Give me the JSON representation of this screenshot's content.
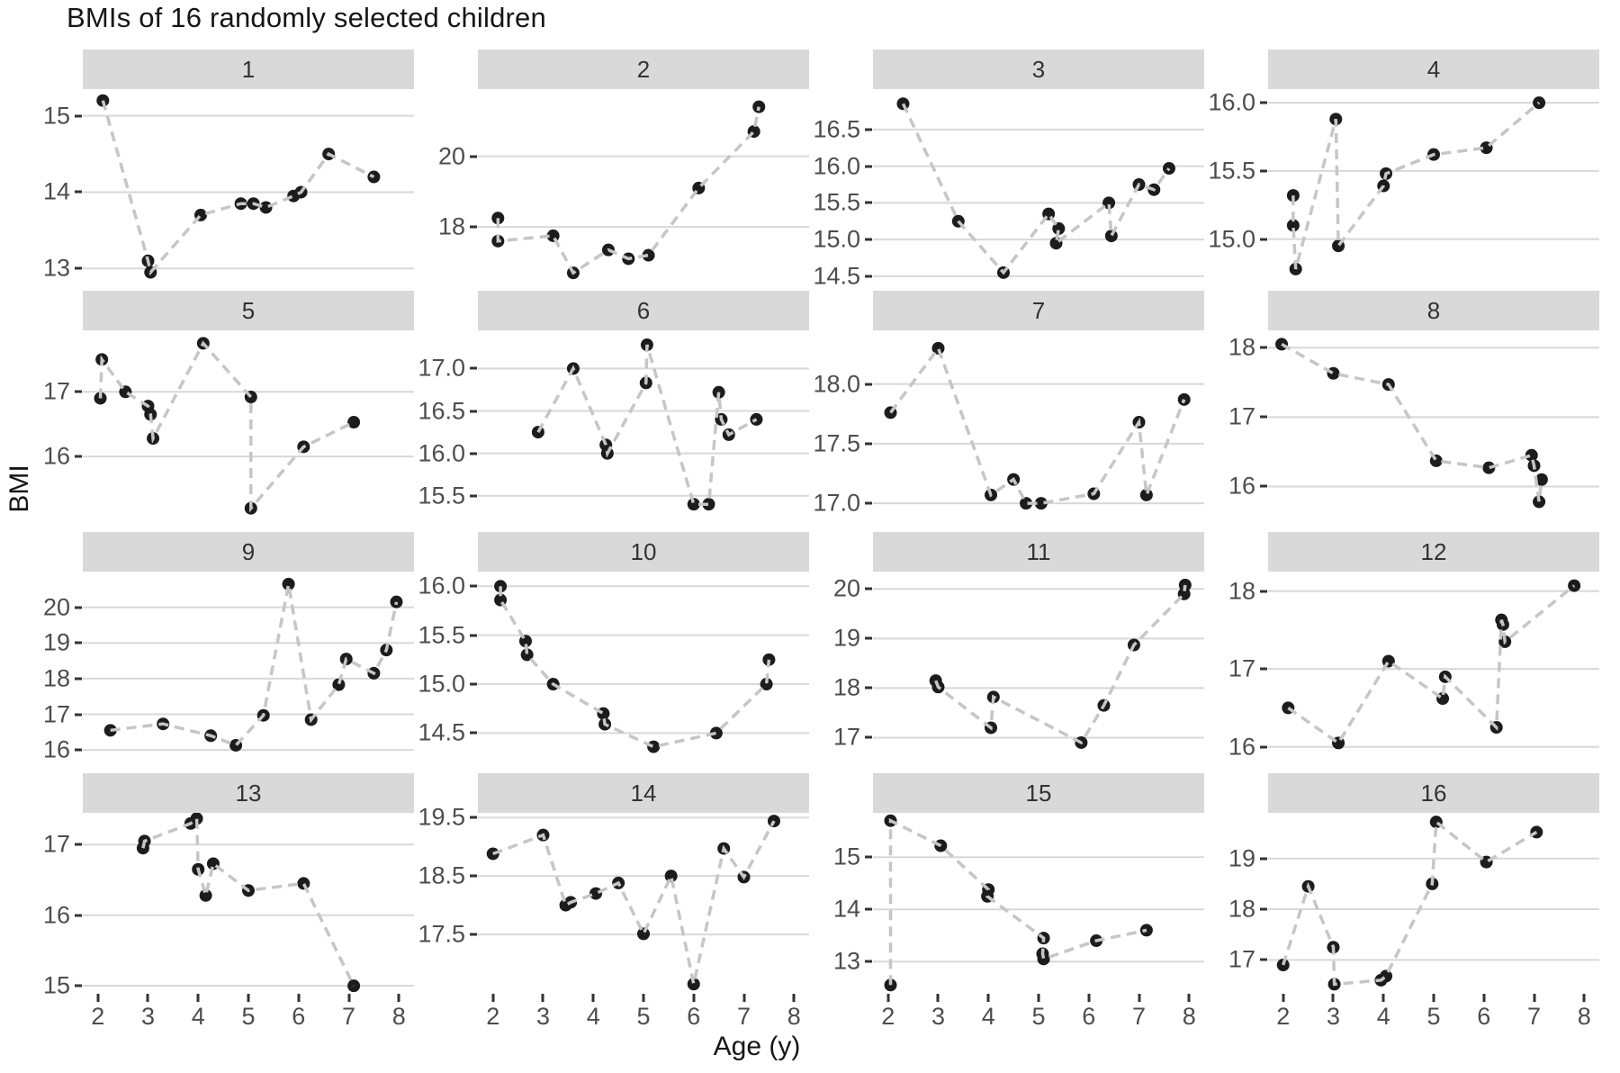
{
  "title": "BMIs of 16 randomly selected children",
  "y_axis_label": "BMI",
  "x_axis": {
    "label": "Age (y)",
    "tick_labels": [
      "2",
      "3",
      "4",
      "5",
      "6",
      "7",
      "8"
    ],
    "tick_values": [
      2,
      3,
      4,
      5,
      6,
      7,
      8
    ]
  },
  "colors": {
    "strip_bg": "#d9d9d9",
    "gridline": "#d8d8d8",
    "dash_line": "#c6c6c6",
    "point": "#1c1c1c",
    "axis_text": "#4d4d4d"
  },
  "chart_data": {
    "type": "line",
    "title": "BMIs of 16 randomly selected children",
    "xlabel": "Age (y)",
    "ylabel": "BMI",
    "x_domain": [
      1.7,
      8.3
    ],
    "x_ticks": [
      2,
      3,
      4,
      5,
      6,
      7,
      8
    ],
    "grid": "horizontal-only",
    "legend": "none",
    "style": {
      "points": "black",
      "lines": "gray-dashed"
    },
    "facets": [
      {
        "id": "1",
        "y_tick_labels": [
          "15",
          "14",
          "13"
        ],
        "y_tick_values": [
          15,
          14,
          13
        ],
        "ylim": [
          12.85,
          15.35
        ],
        "points": [
          [
            2.1,
            15.2
          ],
          [
            3.0,
            13.1
          ],
          [
            3.05,
            12.95
          ],
          [
            4.05,
            13.7
          ],
          [
            4.85,
            13.85
          ],
          [
            5.1,
            13.85
          ],
          [
            5.35,
            13.8
          ],
          [
            5.9,
            13.95
          ],
          [
            6.05,
            14.0
          ],
          [
            6.6,
            14.5
          ],
          [
            7.5,
            14.2
          ]
        ]
      },
      {
        "id": "2",
        "y_tick_labels": [
          "20",
          "18"
        ],
        "y_tick_values": [
          20,
          18
        ],
        "ylim": [
          16.5,
          21.9
        ],
        "points": [
          [
            2.1,
            18.25
          ],
          [
            2.1,
            17.6
          ],
          [
            3.2,
            17.75
          ],
          [
            3.6,
            16.7
          ],
          [
            4.3,
            17.35
          ],
          [
            4.7,
            17.1
          ],
          [
            5.1,
            17.2
          ],
          [
            6.1,
            19.1
          ],
          [
            7.2,
            20.7
          ],
          [
            7.3,
            21.4
          ]
        ]
      },
      {
        "id": "3",
        "y_tick_labels": [
          "16.5",
          "16.0",
          "15.5",
          "15.0",
          "14.5"
        ],
        "y_tick_values": [
          16.5,
          16.0,
          15.5,
          15.0,
          14.5
        ],
        "ylim": [
          14.45,
          17.05
        ],
        "points": [
          [
            2.3,
            16.85
          ],
          [
            3.4,
            15.25
          ],
          [
            4.3,
            14.55
          ],
          [
            5.2,
            15.35
          ],
          [
            5.4,
            15.15
          ],
          [
            5.35,
            14.95
          ],
          [
            6.4,
            15.5
          ],
          [
            6.45,
            15.05
          ],
          [
            7.0,
            15.75
          ],
          [
            7.3,
            15.68
          ],
          [
            7.6,
            15.97
          ]
        ]
      },
      {
        "id": "4",
        "y_tick_labels": [
          "16.0",
          "15.5",
          "15.0"
        ],
        "y_tick_values": [
          16.0,
          15.5,
          15.0
        ],
        "ylim": [
          14.7,
          16.1
        ],
        "points": [
          [
            2.2,
            15.32
          ],
          [
            2.2,
            15.1
          ],
          [
            2.25,
            14.78
          ],
          [
            3.05,
            15.88
          ],
          [
            3.1,
            14.95
          ],
          [
            4.0,
            15.39
          ],
          [
            4.05,
            15.48
          ],
          [
            5.0,
            15.62
          ],
          [
            6.05,
            15.67
          ],
          [
            7.1,
            16.0
          ]
        ]
      },
      {
        "id": "5",
        "y_tick_labels": [
          "17",
          "16"
        ],
        "y_tick_values": [
          17,
          16
        ],
        "ylim": [
          15.0,
          17.95
        ],
        "points": [
          [
            2.05,
            16.9
          ],
          [
            2.08,
            17.5
          ],
          [
            2.55,
            17.0
          ],
          [
            3.0,
            16.78
          ],
          [
            3.05,
            16.65
          ],
          [
            3.1,
            16.28
          ],
          [
            4.1,
            17.75
          ],
          [
            5.05,
            16.92
          ],
          [
            5.05,
            15.2
          ],
          [
            6.1,
            16.15
          ],
          [
            7.1,
            16.53
          ]
        ]
      },
      {
        "id": "6",
        "y_tick_labels": [
          "17.0",
          "16.5",
          "16.0",
          "15.5"
        ],
        "y_tick_values": [
          17.0,
          16.5,
          16.0,
          15.5
        ],
        "ylim": [
          15.2,
          17.45
        ],
        "points": [
          [
            2.9,
            16.25
          ],
          [
            3.6,
            17.0
          ],
          [
            4.25,
            16.1
          ],
          [
            4.28,
            16.0
          ],
          [
            5.05,
            16.83
          ],
          [
            5.07,
            17.28
          ],
          [
            6.0,
            15.4
          ],
          [
            6.3,
            15.4
          ],
          [
            6.5,
            16.72
          ],
          [
            6.55,
            16.4
          ],
          [
            6.7,
            16.22
          ],
          [
            7.25,
            16.4
          ]
        ]
      },
      {
        "id": "7",
        "y_tick_labels": [
          "18.0",
          "17.5",
          "17.0"
        ],
        "y_tick_values": [
          18.0,
          17.5,
          17.0
        ],
        "ylim": [
          16.85,
          18.45
        ],
        "points": [
          [
            2.05,
            17.76
          ],
          [
            3.0,
            18.3
          ],
          [
            4.05,
            17.07
          ],
          [
            4.5,
            17.2
          ],
          [
            4.75,
            17.0
          ],
          [
            5.05,
            17.0
          ],
          [
            6.1,
            17.08
          ],
          [
            7.0,
            17.68
          ],
          [
            7.15,
            17.07
          ],
          [
            7.9,
            17.87
          ]
        ]
      },
      {
        "id": "8",
        "y_tick_labels": [
          "18",
          "17",
          "16"
        ],
        "y_tick_values": [
          18,
          17,
          16
        ],
        "ylim": [
          15.5,
          18.25
        ],
        "points": [
          [
            1.97,
            18.05
          ],
          [
            3.0,
            17.63
          ],
          [
            4.1,
            17.47
          ],
          [
            5.05,
            16.37
          ],
          [
            6.1,
            16.27
          ],
          [
            6.95,
            16.45
          ],
          [
            7.0,
            16.3
          ],
          [
            7.1,
            15.78
          ],
          [
            7.15,
            16.1
          ]
        ]
      },
      {
        "id": "9",
        "y_tick_labels": [
          "20",
          "19",
          "18",
          "17",
          "16"
        ],
        "y_tick_values": [
          20,
          19,
          18,
          17,
          16
        ],
        "ylim": [
          15.65,
          21.0
        ],
        "points": [
          [
            2.25,
            16.55
          ],
          [
            3.3,
            16.73
          ],
          [
            4.25,
            16.4
          ],
          [
            4.75,
            16.13
          ],
          [
            5.3,
            16.97
          ],
          [
            5.8,
            20.65
          ],
          [
            6.25,
            16.85
          ],
          [
            6.8,
            17.83
          ],
          [
            6.95,
            18.55
          ],
          [
            7.5,
            18.15
          ],
          [
            7.75,
            18.8
          ],
          [
            7.95,
            20.15
          ]
        ]
      },
      {
        "id": "10",
        "y_tick_labels": [
          "16.0",
          "15.5",
          "15.0",
          "14.5"
        ],
        "y_tick_values": [
          16.0,
          15.5,
          15.0,
          14.5
        ],
        "ylim": [
          14.2,
          16.15
        ],
        "points": [
          [
            2.15,
            16.0
          ],
          [
            2.15,
            15.86
          ],
          [
            2.65,
            15.44
          ],
          [
            2.68,
            15.3
          ],
          [
            3.2,
            15.0
          ],
          [
            4.2,
            14.7
          ],
          [
            4.23,
            14.59
          ],
          [
            5.2,
            14.36
          ],
          [
            6.45,
            14.5
          ],
          [
            7.45,
            15.0
          ],
          [
            7.5,
            15.25
          ]
        ]
      },
      {
        "id": "11",
        "y_tick_labels": [
          "20",
          "19",
          "18",
          "17"
        ],
        "y_tick_values": [
          20,
          19,
          18,
          17
        ],
        "ylim": [
          16.5,
          20.35
        ],
        "points": [
          [
            2.95,
            18.15
          ],
          [
            3.0,
            18.02
          ],
          [
            4.05,
            17.2
          ],
          [
            4.1,
            17.82
          ],
          [
            5.85,
            16.9
          ],
          [
            6.3,
            17.65
          ],
          [
            6.9,
            18.87
          ],
          [
            7.9,
            19.9
          ],
          [
            7.92,
            20.08
          ]
        ]
      },
      {
        "id": "12",
        "y_tick_labels": [
          "18",
          "17",
          "16"
        ],
        "y_tick_values": [
          18,
          17,
          16
        ],
        "ylim": [
          15.8,
          18.25
        ],
        "points": [
          [
            2.1,
            16.5
          ],
          [
            3.1,
            16.05
          ],
          [
            4.1,
            17.1
          ],
          [
            5.18,
            16.62
          ],
          [
            5.23,
            16.9
          ],
          [
            6.25,
            16.25
          ],
          [
            6.35,
            17.63
          ],
          [
            6.38,
            17.57
          ],
          [
            6.42,
            17.35
          ],
          [
            7.8,
            18.07
          ]
        ]
      },
      {
        "id": "13",
        "y_tick_labels": [
          "17",
          "16",
          "15"
        ],
        "y_tick_values": [
          17,
          16,
          15
        ],
        "ylim": [
          14.9,
          17.45
        ],
        "points": [
          [
            2.9,
            16.95
          ],
          [
            2.93,
            17.05
          ],
          [
            3.85,
            17.3
          ],
          [
            3.97,
            17.37
          ],
          [
            4.0,
            16.65
          ],
          [
            4.15,
            16.28
          ],
          [
            4.3,
            16.73
          ],
          [
            5.0,
            16.35
          ],
          [
            6.1,
            16.45
          ],
          [
            7.1,
            15.0
          ]
        ]
      },
      {
        "id": "14",
        "y_tick_labels": [
          "19.5",
          "18.5",
          "17.5"
        ],
        "y_tick_values": [
          19.5,
          18.5,
          17.5
        ],
        "ylim": [
          16.5,
          19.58
        ],
        "points": [
          [
            2.0,
            18.88
          ],
          [
            3.0,
            19.2
          ],
          [
            3.45,
            18.0
          ],
          [
            3.55,
            18.05
          ],
          [
            4.05,
            18.2
          ],
          [
            4.5,
            18.38
          ],
          [
            5.0,
            17.51
          ],
          [
            5.55,
            18.5
          ],
          [
            6.0,
            16.65
          ],
          [
            6.6,
            18.97
          ],
          [
            7.0,
            18.48
          ],
          [
            7.6,
            19.44
          ]
        ]
      },
      {
        "id": "15",
        "y_tick_labels": [
          "15",
          "14",
          "13"
        ],
        "y_tick_values": [
          15,
          14,
          13
        ],
        "ylim": [
          12.4,
          15.85
        ],
        "points": [
          [
            2.05,
            12.55
          ],
          [
            2.05,
            15.7
          ],
          [
            3.05,
            15.22
          ],
          [
            4.0,
            14.38
          ],
          [
            3.98,
            14.25
          ],
          [
            5.1,
            13.45
          ],
          [
            5.08,
            13.15
          ],
          [
            5.1,
            13.05
          ],
          [
            6.15,
            13.4
          ],
          [
            7.15,
            13.6
          ]
        ]
      },
      {
        "id": "16",
        "y_tick_labels": [
          "19",
          "18",
          "17"
        ],
        "y_tick_values": [
          19,
          18,
          17
        ],
        "ylim": [
          16.35,
          19.9
        ],
        "points": [
          [
            2.0,
            16.9
          ],
          [
            2.5,
            18.45
          ],
          [
            3.0,
            17.25
          ],
          [
            3.02,
            16.52
          ],
          [
            3.95,
            16.6
          ],
          [
            4.05,
            16.68
          ],
          [
            4.97,
            18.5
          ],
          [
            5.05,
            19.72
          ],
          [
            6.05,
            18.93
          ],
          [
            7.05,
            19.52
          ]
        ]
      }
    ]
  }
}
